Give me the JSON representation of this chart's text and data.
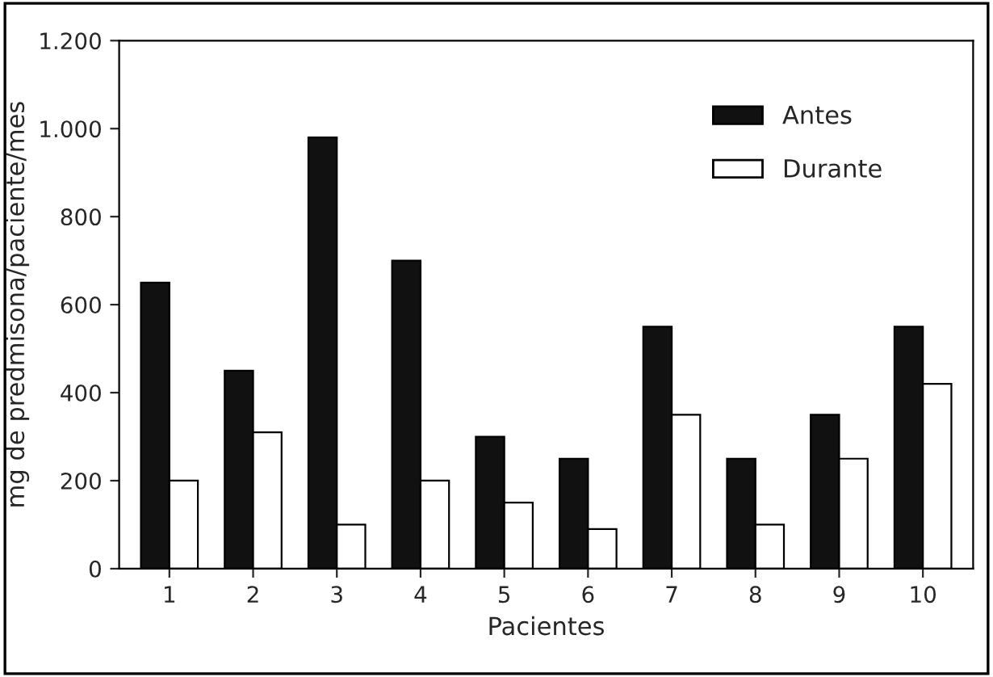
{
  "chart_data": {
    "type": "bar",
    "xlabel": "Pacientes",
    "ylabel": "mg de predmisona/paciente/mes",
    "categories": [
      "1",
      "2",
      "3",
      "4",
      "5",
      "6",
      "7",
      "8",
      "9",
      "10"
    ],
    "series": [
      {
        "name": "Antes",
        "color": "#111111",
        "values": [
          650,
          450,
          980,
          700,
          300,
          250,
          550,
          250,
          350,
          550
        ]
      },
      {
        "name": "Durante",
        "color": "#ffffff",
        "values": [
          200,
          310,
          100,
          200,
          150,
          90,
          350,
          100,
          250,
          420
        ]
      }
    ],
    "ylim": [
      0,
      1200
    ],
    "yticks": [
      0,
      200,
      400,
      600,
      800,
      {
        "value": 1000,
        "label": "1.000"
      },
      {
        "value": 1200,
        "label": "1.200"
      }
    ],
    "grid": false,
    "legend": "top right"
  }
}
